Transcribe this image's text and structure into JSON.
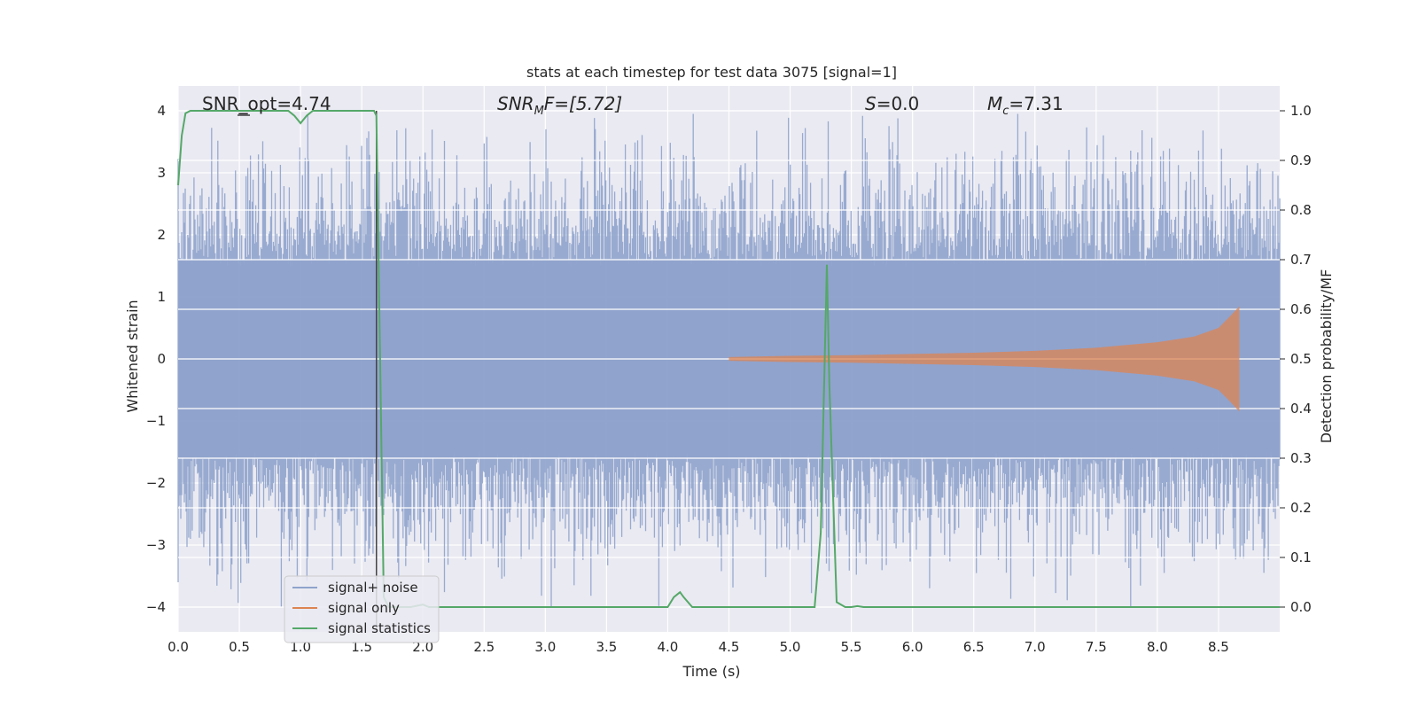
{
  "chart_data": {
    "type": "line",
    "title": "stats at each timestep for test data 3075 [signal=1]",
    "xlabel": "Time (s)",
    "ylabel": "Whitened strain",
    "y2label": "Detection probability/MF",
    "xlim": [
      0.0,
      9.0
    ],
    "ylim": [
      -4.4,
      4.4
    ],
    "y2lim": [
      -0.05,
      1.05
    ],
    "x_ticks": [
      "0.0",
      "0.5",
      "1.0",
      "1.5",
      "2.0",
      "2.5",
      "3.0",
      "3.5",
      "4.0",
      "4.5",
      "5.0",
      "5.5",
      "6.0",
      "6.5",
      "7.0",
      "7.5",
      "8.0",
      "8.5"
    ],
    "y_ticks": [
      "4",
      "3",
      "2",
      "1",
      "0",
      "−1",
      "−2",
      "−3",
      "−4"
    ],
    "y2_ticks": [
      "1.0",
      "0.9",
      "0.8",
      "0.7",
      "0.6",
      "0.5",
      "0.4",
      "0.3",
      "0.2",
      "0.1",
      "0.0"
    ],
    "grid": true,
    "legend_position": "lower-left",
    "colors": {
      "background": "#eaeaf2",
      "signal_noise": "#8fa3cc",
      "signal_only": "#dd8452",
      "signal_statistics": "#55a868",
      "vertical_marker": "#444444"
    },
    "series": [
      {
        "name": "signal+ noise",
        "description_kind": "noise_band",
        "amplitude_core": 1.6,
        "peak_max": 3.95,
        "peak_min": -4.0,
        "x_range": [
          0.0,
          9.0
        ]
      },
      {
        "name": "signal only",
        "description_kind": "chirp",
        "x_start": 4.5,
        "x_end": 8.67,
        "peak_amplitude": 0.85,
        "x": [
          4.5,
          5.0,
          5.5,
          6.0,
          6.5,
          7.0,
          7.5,
          8.0,
          8.3,
          8.5,
          8.6,
          8.67
        ],
        "amplitude": [
          0.03,
          0.05,
          0.06,
          0.08,
          0.1,
          0.13,
          0.18,
          0.27,
          0.36,
          0.5,
          0.7,
          0.85
        ]
      },
      {
        "name": "signal statistics",
        "axis": "right",
        "x": [
          0.0,
          0.03,
          0.06,
          0.1,
          0.2,
          0.5,
          0.9,
          0.95,
          1.0,
          1.05,
          1.1,
          1.5,
          1.6,
          1.62,
          1.65,
          1.68,
          1.72,
          1.8,
          1.9,
          2.0,
          2.05,
          2.1,
          3.0,
          4.0,
          4.05,
          4.1,
          4.13,
          4.2,
          5.0,
          5.2,
          5.25,
          5.3,
          5.32,
          5.38,
          5.45,
          5.5,
          5.55,
          5.6,
          6.0,
          9.0
        ],
        "values": [
          0.85,
          0.95,
          0.995,
          1.0,
          1.0,
          1.0,
          1.0,
          0.99,
          0.975,
          0.99,
          1.0,
          1.0,
          1.0,
          0.99,
          0.5,
          0.02,
          0.0,
          0.0,
          0.0,
          0.005,
          0.0,
          0.0,
          0.0,
          0.0,
          0.02,
          0.03,
          0.02,
          0.0,
          0.0,
          0.0,
          0.15,
          0.69,
          0.45,
          0.01,
          0.0,
          0.0,
          0.002,
          0.0,
          0.0,
          0.0
        ]
      }
    ],
    "vertical_line": {
      "x": 1.62
    },
    "annotations": {
      "snr_opt": "SNR_opt=4.74",
      "snr_mf_main": "SNR",
      "snr_mf_sub": "M",
      "snr_mf_rest": "F=[5.72]",
      "s_main": "S",
      "s_rest": "=0.0",
      "mc_main": "M",
      "mc_sub": "c",
      "mc_rest": "=7.31"
    }
  }
}
